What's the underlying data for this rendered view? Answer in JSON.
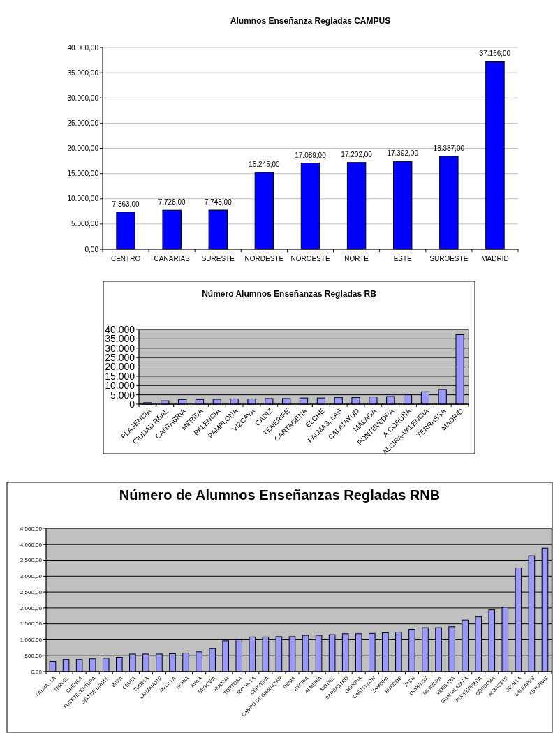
{
  "chart_data": [
    {
      "type": "bar",
      "title": "Alumnos Enseñanza Regladas CAMPUS",
      "categories": [
        "CENTRO",
        "CANARIAS",
        "SURESTE",
        "NORDESTE",
        "NOROESTE",
        "NORTE",
        "ESTE",
        "SUROESTE",
        "MADRID"
      ],
      "values": [
        7363,
        7728,
        7748,
        15245,
        17089,
        17202,
        17392,
        18387,
        37166
      ],
      "value_labels": [
        "7.363,00",
        "7.728,00",
        "7.748,00",
        "15.245,00",
        "17.089,00",
        "17.202,00",
        "17.392,00",
        "18.387,00",
        "37.166,00"
      ],
      "color": "#0000ff",
      "ylim": [
        0,
        40000
      ],
      "yticks": [
        {
          "value": 0,
          "label": "0,00"
        },
        {
          "value": 5000,
          "label": "5.000,00"
        },
        {
          "value": 10000,
          "label": "10.000,00"
        },
        {
          "value": 15000,
          "label": "15.000,00"
        },
        {
          "value": 20000,
          "label": "20.000,00"
        },
        {
          "value": 25000,
          "label": "25.000,00"
        },
        {
          "value": 30000,
          "label": "30.000,00"
        },
        {
          "value": 35000,
          "label": "35.000,00"
        },
        {
          "value": 40000,
          "label": "40.000,00"
        }
      ],
      "grid": "y"
    },
    {
      "type": "bar",
      "title": "Número Alumnos Enseñanzas Regladas RB",
      "categories": [
        "PLASENCIA",
        "CIUDAD REAL",
        "CANTABRIA",
        "MÉRIDA",
        "PALENCIA",
        "PAMPLONA",
        "VIZCAYA",
        "CADIZ",
        "TENERIFE",
        "CARTAGENA",
        "ELCHE",
        "PALMAS, LAS",
        "CALATAYUD",
        "MÁLAGA",
        "PONTEVEDRA",
        "A CORUÑA",
        "ALCIRA-VALENCIA",
        "TERRASSA",
        "MADRID"
      ],
      "values": [
        800,
        1800,
        2500,
        2500,
        2600,
        2800,
        2800,
        3000,
        3000,
        3300,
        3300,
        3600,
        3600,
        3900,
        4100,
        5000,
        6600,
        7900,
        37200
      ],
      "color": "#9999ff",
      "ylim": [
        0,
        40000
      ],
      "yticks": [
        {
          "value": 0,
          "label": "0"
        },
        {
          "value": 5000,
          "label": "5.000"
        },
        {
          "value": 10000,
          "label": "10.000"
        },
        {
          "value": 15000,
          "label": "15.000"
        },
        {
          "value": 20000,
          "label": "20.000"
        },
        {
          "value": 25000,
          "label": "25.000"
        },
        {
          "value": 30000,
          "label": "30.000"
        },
        {
          "value": 35000,
          "label": "35.000"
        },
        {
          "value": 40000,
          "label": "40.000"
        }
      ],
      "grid": "y"
    },
    {
      "type": "bar",
      "title": "Número de Alumnos Enseñanzas Regladas RNB",
      "categories": [
        "PALMA , LA",
        "TERUEL",
        "CUENCA",
        "FUERTEVENTURA",
        "SEO DE URGEL",
        "BAZA",
        "CEUTA",
        "TUDELA",
        "LANZAROTE",
        "MELILLA",
        "SORIA",
        "AVILA",
        "SEGOVIA",
        "HUELVA",
        "TORTOSA",
        "RIOJA, LA",
        "CERVERA",
        "CAMPO DE GIBRALTAR",
        "DENIA",
        "VITORIA",
        "ALMERÍA",
        "MOTRIL",
        "BARBASTRO",
        "GERONA",
        "CASTELLÓN",
        "ZAMORA",
        "BURGOS",
        "JAÉN",
        "OURENSE",
        "TALAVERA",
        "VERGARA",
        "GUADALAJARA",
        "PONFERRADA",
        "CÓRDOBA",
        "ALBACETE",
        "SEVILLA",
        "BALEARES",
        "ASTURIAS"
      ],
      "values": [
        320,
        380,
        380,
        400,
        420,
        450,
        550,
        550,
        550,
        560,
        580,
        620,
        730,
        970,
        1000,
        1090,
        1090,
        1100,
        1100,
        1140,
        1140,
        1160,
        1190,
        1190,
        1200,
        1220,
        1240,
        1330,
        1380,
        1380,
        1410,
        1620,
        1720,
        1940,
        2020,
        3260,
        3640,
        3880
      ],
      "color": "#9999ff",
      "ylim": [
        0,
        4500
      ],
      "yticks": [
        {
          "value": 0,
          "label": "0,00"
        },
        {
          "value": 500,
          "label": "500,00"
        },
        {
          "value": 1000,
          "label": "1.000,00"
        },
        {
          "value": 1500,
          "label": "1.500,00"
        },
        {
          "value": 2000,
          "label": "2.000,00"
        },
        {
          "value": 2500,
          "label": "2.500,00"
        },
        {
          "value": 3000,
          "label": "3.000,00"
        },
        {
          "value": 3500,
          "label": "3.500,00"
        },
        {
          "value": 4000,
          "label": "4.000,00"
        },
        {
          "value": 4500,
          "label": "4.500,00"
        }
      ],
      "grid": "y"
    }
  ]
}
